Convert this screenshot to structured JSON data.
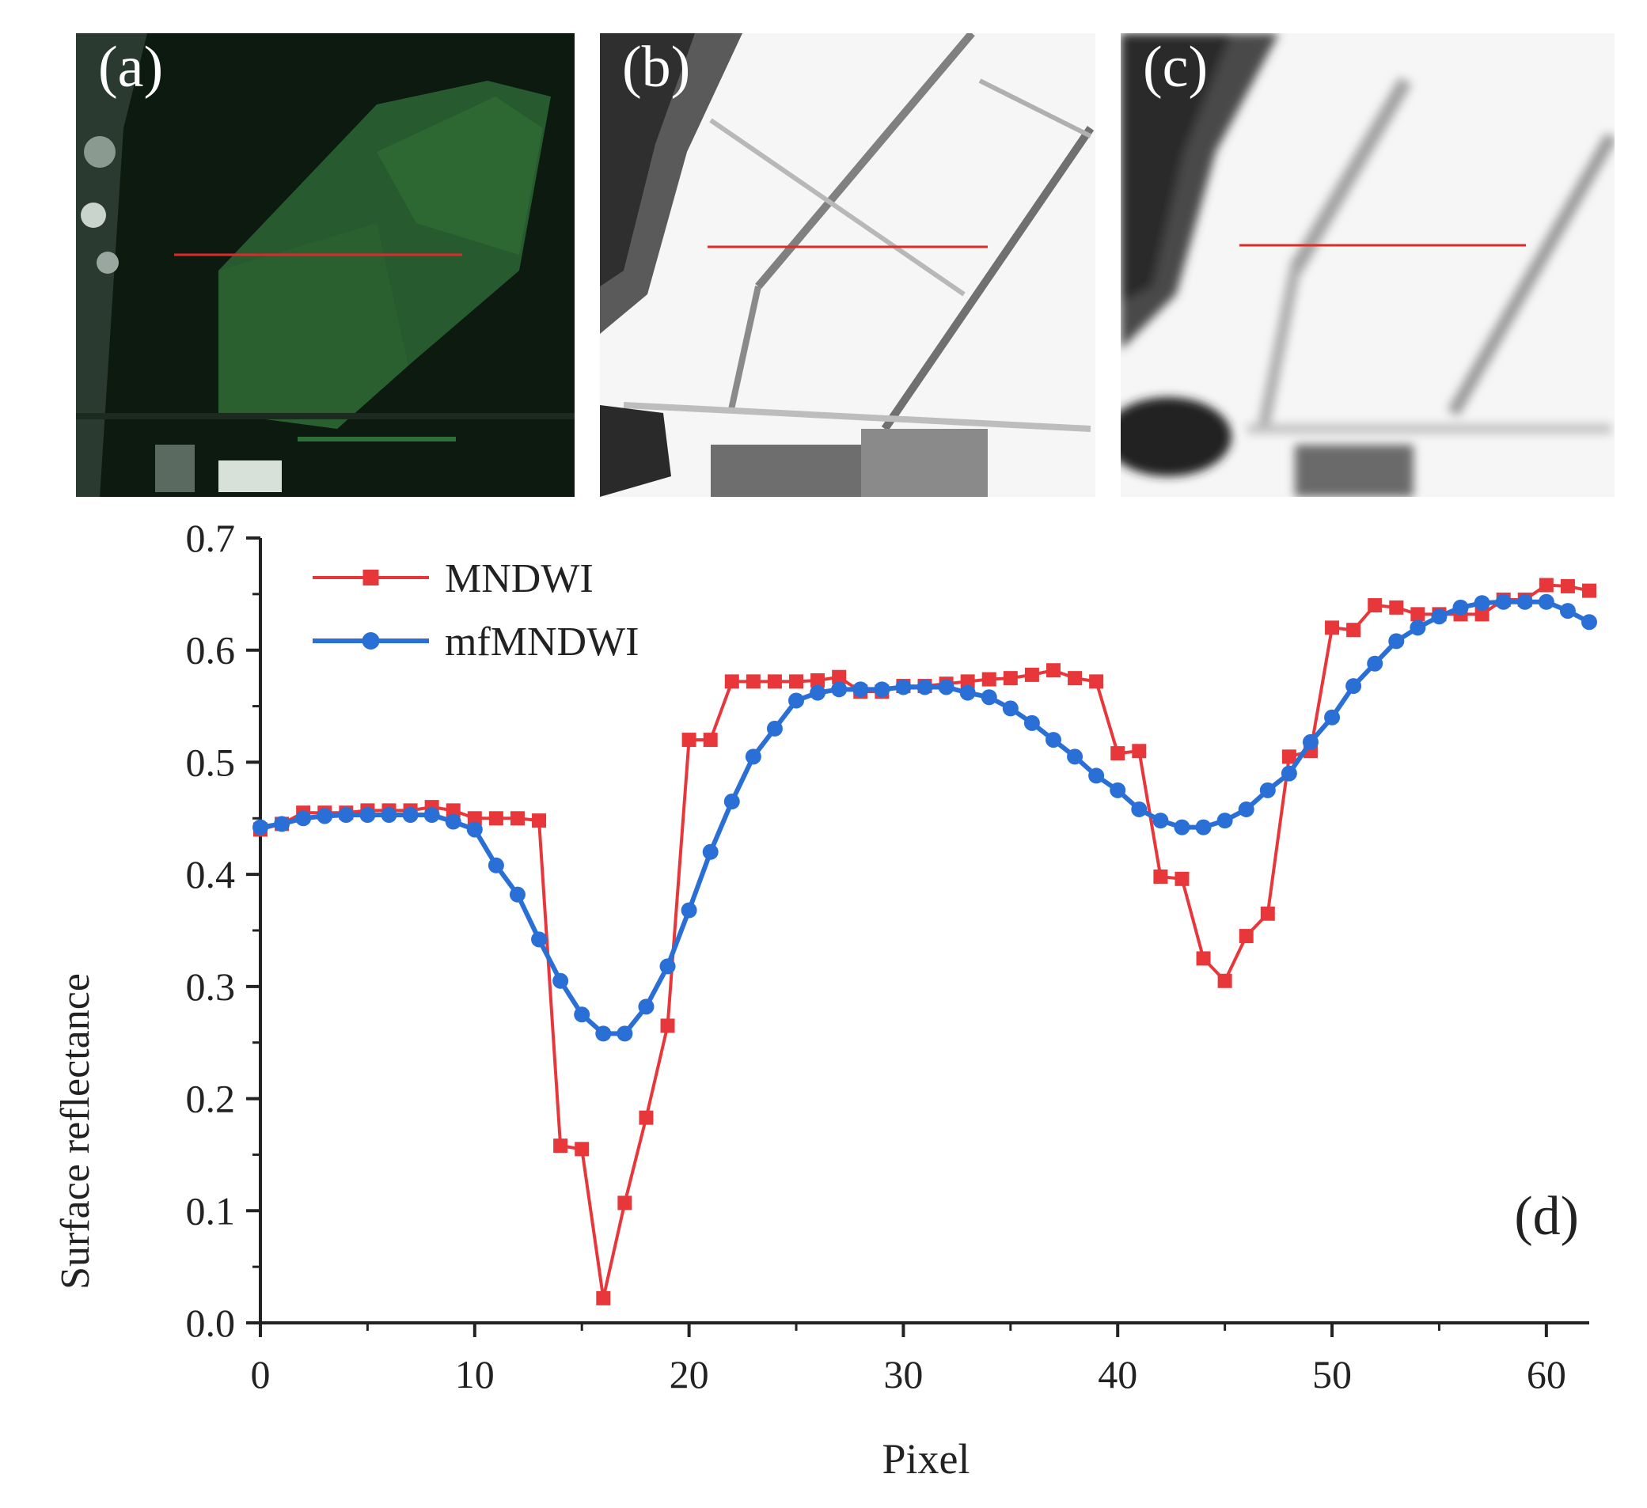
{
  "panels": [
    {
      "label": "(a)"
    },
    {
      "label": "(b)"
    },
    {
      "label": "(c)"
    }
  ],
  "chart_data": {
    "type": "line",
    "xlabel": "Pixel",
    "ylabel": "Surface reflectance",
    "annotation": "(d)",
    "xlim": [
      0,
      62
    ],
    "ylim": [
      0,
      0.7
    ],
    "xticks": [
      0,
      10,
      20,
      30,
      40,
      50,
      60
    ],
    "yticks": [
      0.0,
      0.1,
      0.2,
      0.3,
      0.4,
      0.5,
      0.6,
      0.7
    ],
    "ytick_labels": [
      "0.0",
      "0.1",
      "0.2",
      "0.3",
      "0.4",
      "0.5",
      "0.6",
      "0.7"
    ],
    "grid": false,
    "legend": "top-left",
    "x": [
      0,
      1,
      2,
      3,
      4,
      5,
      6,
      7,
      8,
      9,
      10,
      11,
      12,
      13,
      14,
      15,
      16,
      17,
      18,
      19,
      20,
      21,
      22,
      23,
      24,
      25,
      26,
      27,
      28,
      29,
      30,
      31,
      32,
      33,
      34,
      35,
      36,
      37,
      38,
      39,
      40,
      41,
      42,
      43,
      44,
      45,
      46,
      47,
      48,
      49,
      50,
      51,
      52,
      53,
      54,
      55,
      56,
      57,
      58,
      59,
      60,
      61,
      62
    ],
    "series": [
      {
        "name": "MNDWI",
        "color": "#e8373a",
        "marker": "square",
        "values": [
          0.44,
          0.445,
          0.455,
          0.455,
          0.455,
          0.457,
          0.457,
          0.457,
          0.46,
          0.457,
          0.45,
          0.45,
          0.45,
          0.448,
          0.158,
          0.155,
          0.022,
          0.107,
          0.183,
          0.265,
          0.52,
          0.52,
          0.572,
          0.572,
          0.572,
          0.572,
          0.573,
          0.576,
          0.563,
          0.563,
          0.568,
          0.568,
          0.57,
          0.572,
          0.574,
          0.575,
          0.578,
          0.582,
          0.575,
          0.572,
          0.508,
          0.51,
          0.398,
          0.396,
          0.325,
          0.305,
          0.345,
          0.365,
          0.505,
          0.51,
          0.62,
          0.618,
          0.64,
          0.638,
          0.632,
          0.632,
          0.632,
          0.632,
          0.645,
          0.645,
          0.658,
          0.657,
          0.653
        ]
      },
      {
        "name": "mfMNDWI",
        "color": "#2a6fd6",
        "marker": "circle",
        "values": [
          0.442,
          0.445,
          0.45,
          0.452,
          0.453,
          0.453,
          0.453,
          0.453,
          0.453,
          0.447,
          0.44,
          0.408,
          0.382,
          0.342,
          0.305,
          0.275,
          0.258,
          0.258,
          0.282,
          0.318,
          0.368,
          0.42,
          0.465,
          0.505,
          0.53,
          0.555,
          0.562,
          0.565,
          0.565,
          0.565,
          0.567,
          0.567,
          0.567,
          0.562,
          0.558,
          0.548,
          0.535,
          0.52,
          0.505,
          0.488,
          0.475,
          0.458,
          0.448,
          0.442,
          0.442,
          0.448,
          0.458,
          0.475,
          0.49,
          0.518,
          0.54,
          0.568,
          0.588,
          0.608,
          0.62,
          0.63,
          0.638,
          0.642,
          0.643,
          0.643,
          0.643,
          0.635,
          0.625
        ]
      }
    ]
  }
}
